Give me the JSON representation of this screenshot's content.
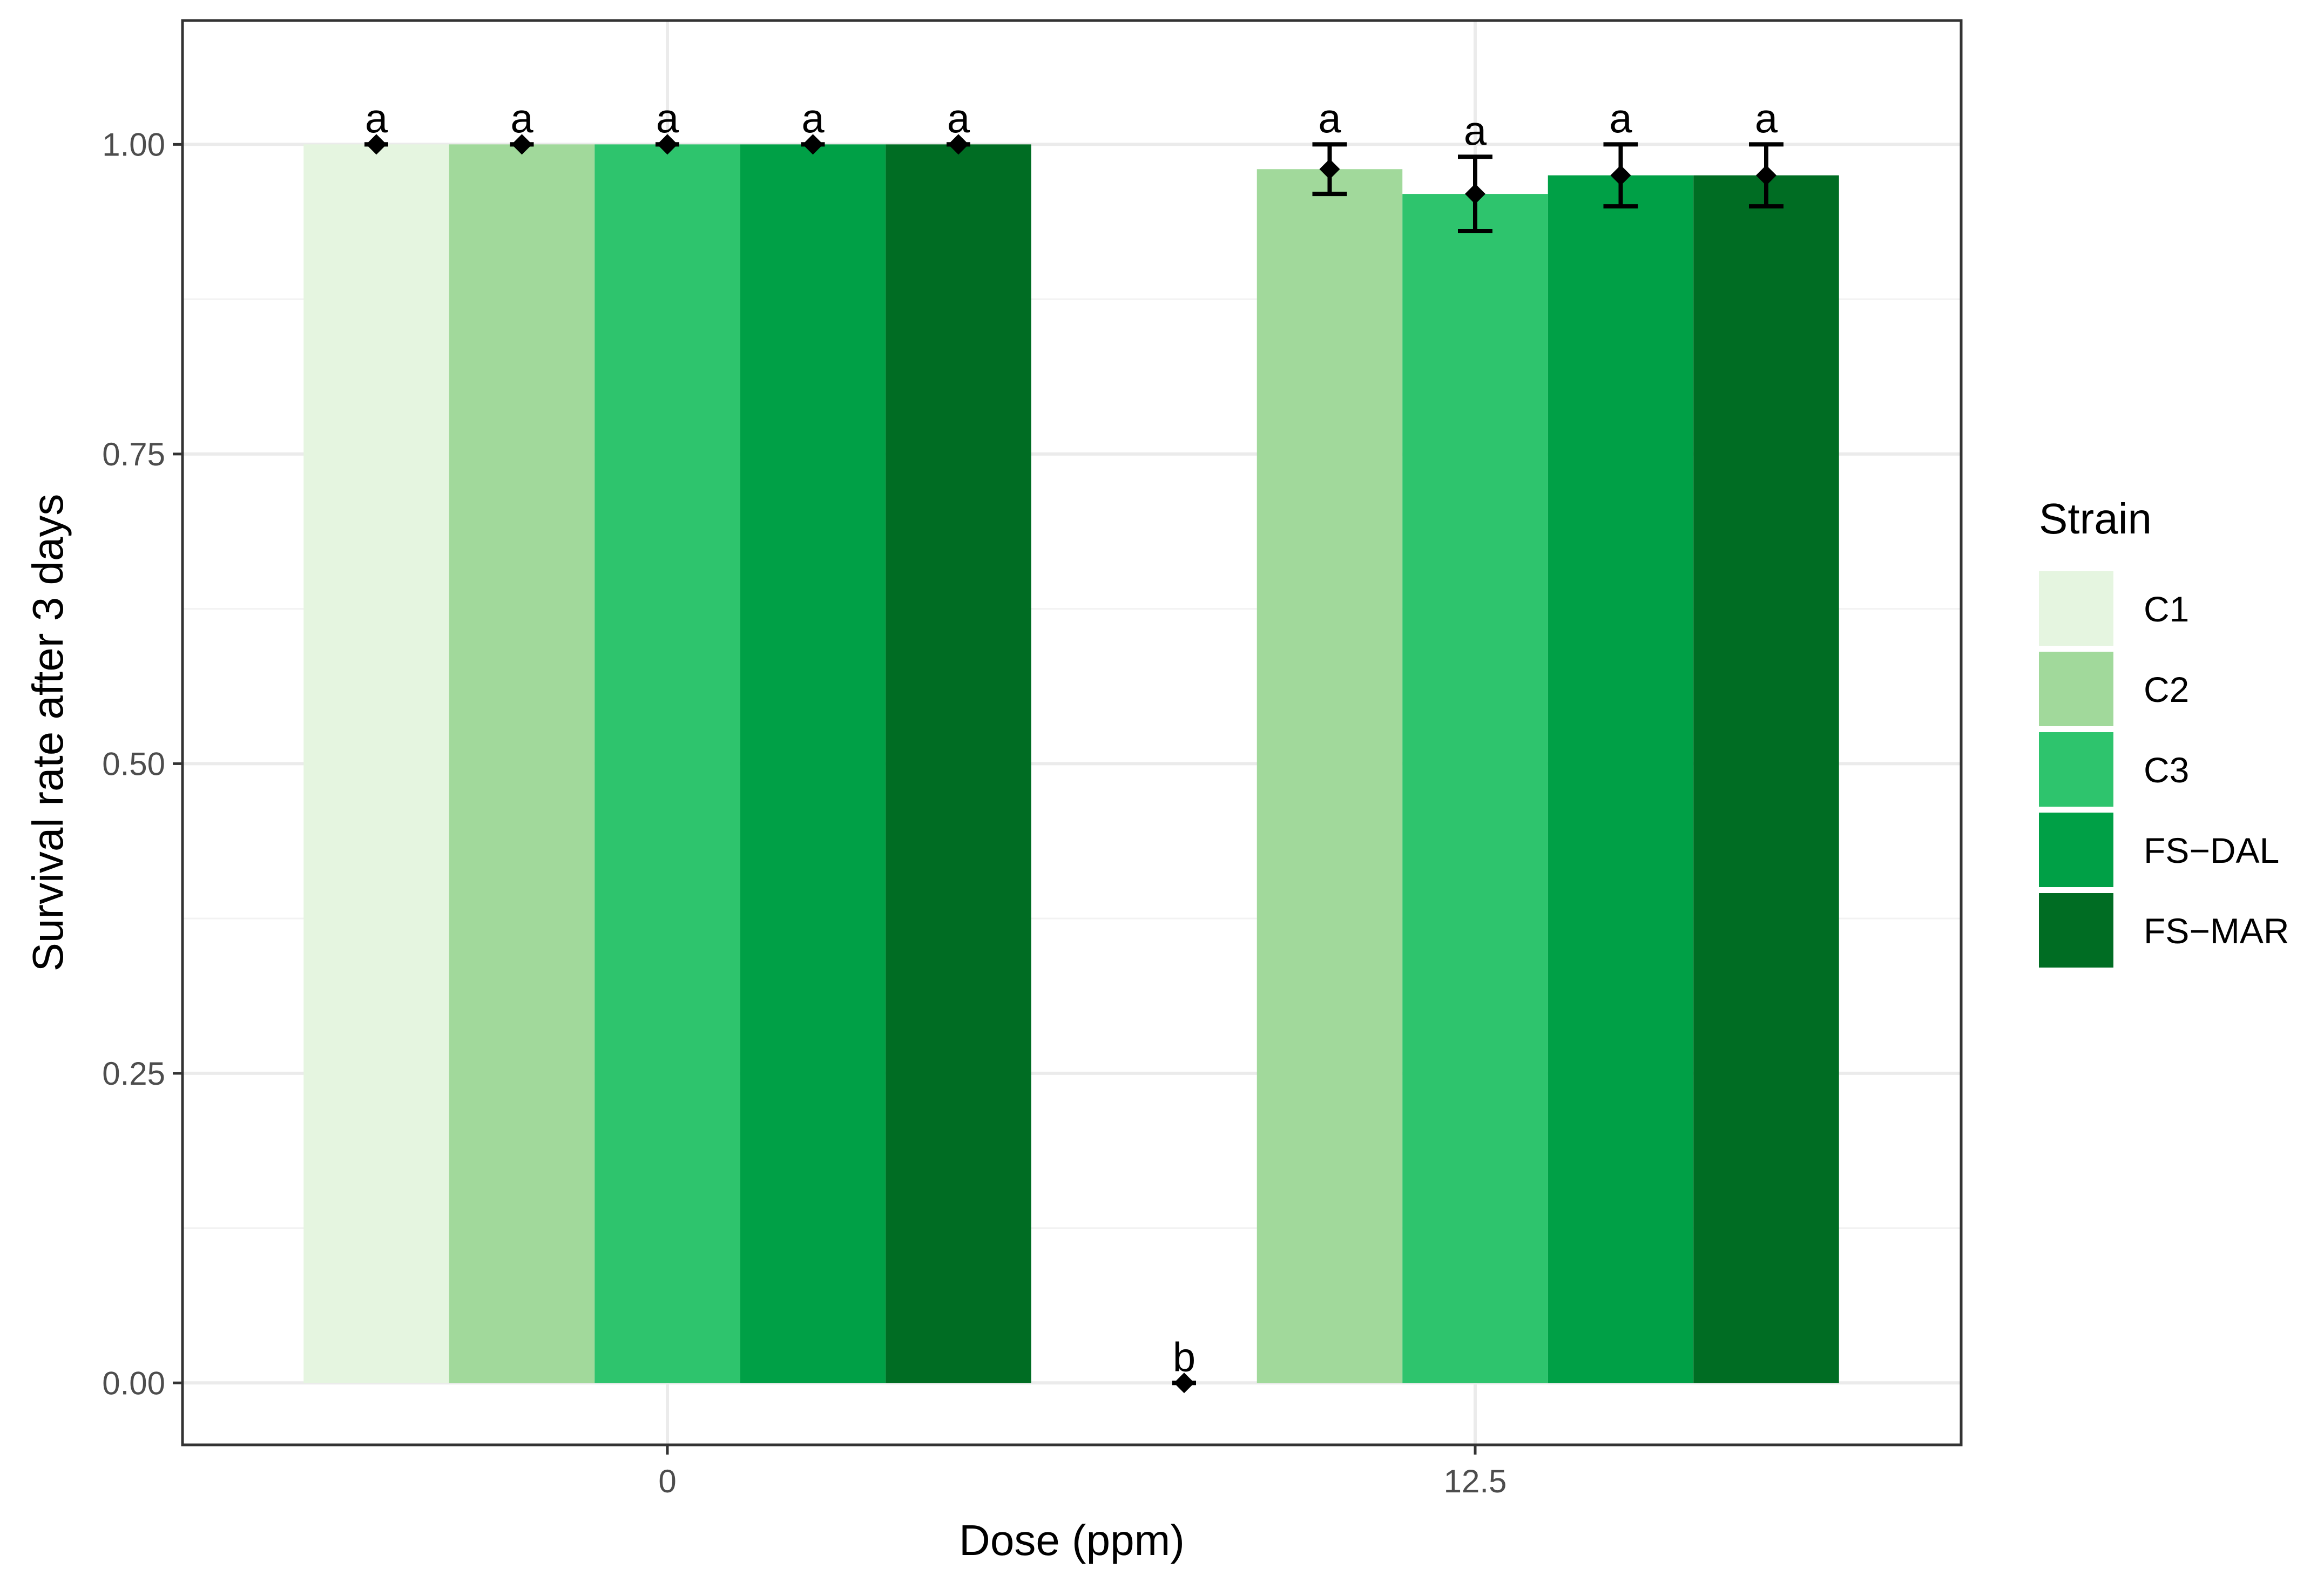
{
  "chart_data": {
    "type": "bar",
    "xlabel": "Dose (ppm)",
    "ylabel": "Survival rate after 3 days",
    "categories": [
      "0",
      "12.5"
    ],
    "ylim": [
      -0.05,
      1.1
    ],
    "yticks": [
      0,
      0.25,
      0.5,
      0.75,
      1
    ],
    "ytick_labels": [
      "0.00",
      "0.25",
      "0.50",
      "0.75",
      "1.00"
    ],
    "grid": true,
    "legend": {
      "title": "Strain",
      "position": "right"
    },
    "series": [
      {
        "name": "C1",
        "color": "#e5f5e0",
        "values": [
          1.0,
          0.0
        ],
        "err": [
          0.0,
          0.0
        ],
        "sig": [
          "a",
          "b"
        ]
      },
      {
        "name": "C2",
        "color": "#a1d99b",
        "values": [
          1.0,
          0.98
        ],
        "err": [
          0.0,
          0.02
        ],
        "sig": [
          "a",
          "a"
        ]
      },
      {
        "name": "C3",
        "color": "#2ec46d",
        "values": [
          1.0,
          0.96
        ],
        "err": [
          0.0,
          0.03
        ],
        "sig": [
          "a",
          "a"
        ]
      },
      {
        "name": "FS−DAL",
        "color": "#00a046",
        "values": [
          1.0,
          0.975
        ],
        "err": [
          0.0,
          0.025
        ],
        "sig": [
          "a",
          "a"
        ]
      },
      {
        "name": "FS−MAR",
        "color": "#006d23",
        "values": [
          1.0,
          0.975
        ],
        "err": [
          0.0,
          0.025
        ],
        "sig": [
          "a",
          "a"
        ]
      }
    ]
  }
}
